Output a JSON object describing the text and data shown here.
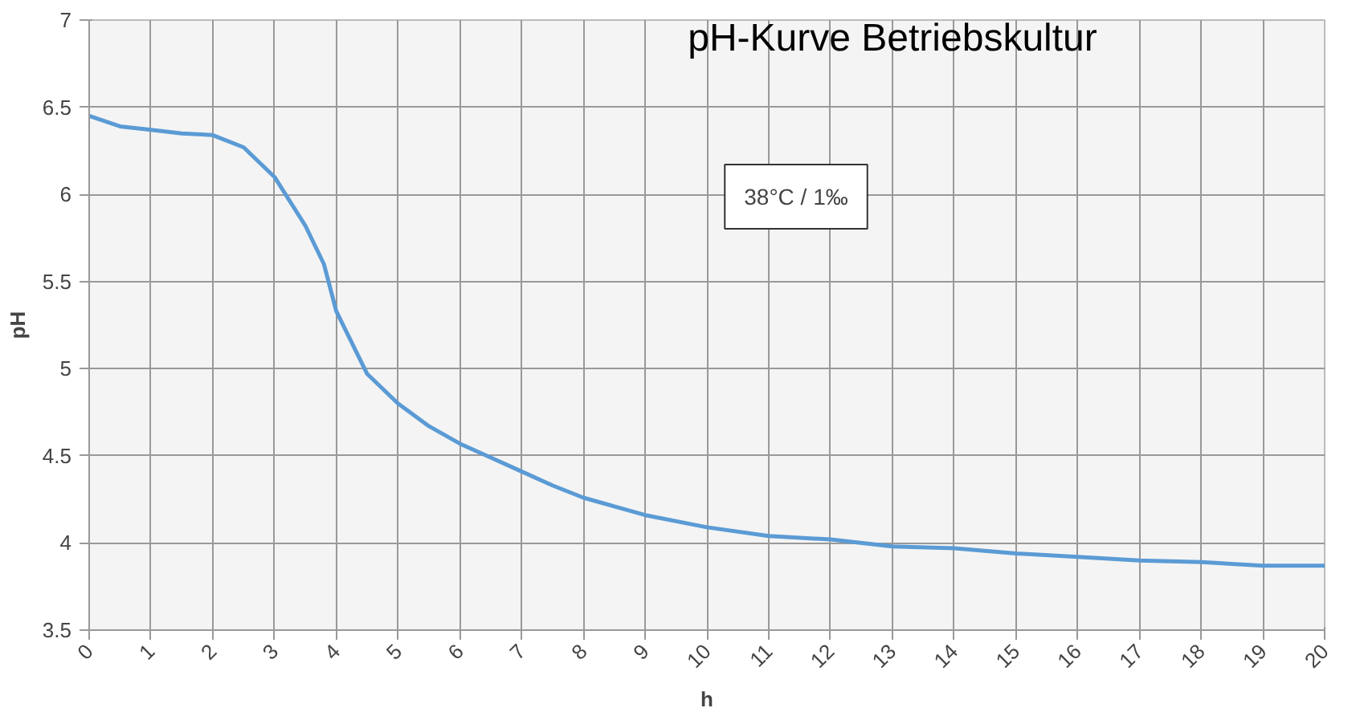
{
  "chart_data": {
    "type": "line",
    "title": "pH-Kurve Betriebskultur",
    "xlabel": "h",
    "ylabel": "pH",
    "annotations": [
      "38°C / 1‰"
    ],
    "x": [
      0,
      0.5,
      1,
      1.5,
      2,
      2.5,
      3,
      3.5,
      3.8,
      4,
      4.5,
      5,
      5.5,
      6,
      6.5,
      7,
      7.5,
      8,
      8.5,
      9,
      10,
      11,
      12,
      13,
      14,
      15,
      16,
      17,
      18,
      19,
      20
    ],
    "series": [
      {
        "color": "#5b9bd5",
        "values": [
          6.45,
          6.39,
          6.37,
          6.35,
          6.34,
          6.27,
          6.1,
          5.82,
          5.6,
          5.33,
          4.97,
          4.8,
          4.67,
          4.57,
          4.49,
          4.41,
          4.33,
          4.26,
          4.21,
          4.16,
          4.09,
          4.04,
          4.02,
          3.98,
          3.97,
          3.94,
          3.92,
          3.9,
          3.89,
          3.87,
          3.87
        ]
      }
    ],
    "xlim": [
      0,
      20
    ],
    "xticks": [
      0,
      1,
      2,
      3,
      4,
      5,
      6,
      7,
      8,
      9,
      10,
      11,
      12,
      13,
      14,
      15,
      16,
      17,
      18,
      19,
      20
    ],
    "ylim": [
      3.5,
      7
    ],
    "yticks": [
      3.5,
      4,
      4.5,
      5,
      5.5,
      6,
      6.5,
      7
    ],
    "grid": true,
    "line_style": "solid",
    "marker": "none"
  }
}
